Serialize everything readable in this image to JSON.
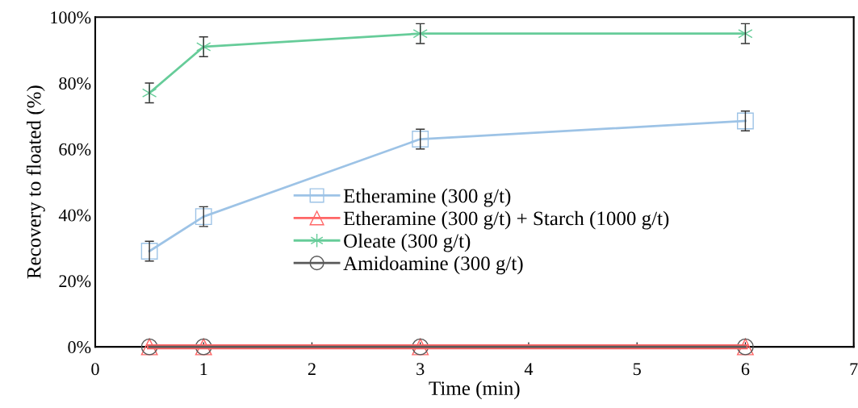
{
  "chart_data": {
    "type": "line",
    "xlabel": "Time (min)",
    "ylabel": "Recovery to floated (%)",
    "xlim": [
      0,
      7
    ],
    "xticks": [
      0,
      1,
      2,
      3,
      4,
      5,
      6,
      7
    ],
    "ylim": [
      0,
      100
    ],
    "yticks": [
      {
        "value": 0,
        "label": "0%"
      },
      {
        "value": 20,
        "label": "20%"
      },
      {
        "value": 40,
        "label": "40%"
      },
      {
        "value": 60,
        "label": "60%"
      },
      {
        "value": 80,
        "label": "80%"
      },
      {
        "value": 100,
        "label": "100%"
      }
    ],
    "grid": false,
    "legend": "center",
    "line_style": "solid",
    "x": [
      0.5,
      1,
      3,
      6
    ],
    "series": [
      {
        "name": "Etheramine (300 g/t)",
        "color": "#9dc3e6",
        "marker": "square",
        "values": [
          29,
          39.5,
          63,
          68.5
        ],
        "errors": [
          3,
          3,
          3,
          3
        ]
      },
      {
        "name": "Etheramine (300 g/t) + Starch (1000 g/t)",
        "color": "#ff6666",
        "marker": "triangle",
        "values": [
          0,
          0,
          0,
          0
        ]
      },
      {
        "name": "Oleate (300 g/t)",
        "color": "#66cc99",
        "marker": "cross",
        "values": [
          77,
          91,
          95,
          95
        ],
        "errors": [
          3,
          3,
          3,
          3
        ]
      },
      {
        "name": "Amidoamine (300 g/t)",
        "color": "#595959",
        "marker": "circle",
        "values": [
          0,
          0,
          0,
          0
        ]
      }
    ]
  }
}
